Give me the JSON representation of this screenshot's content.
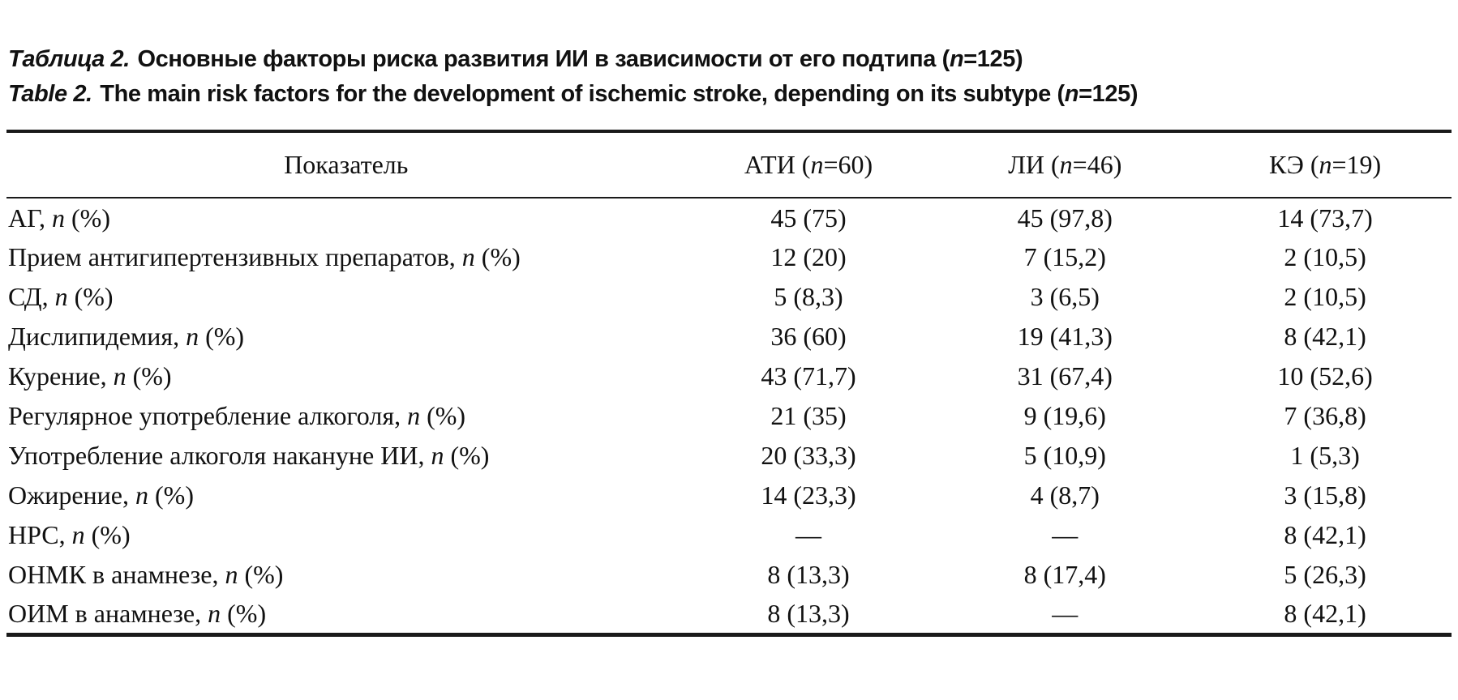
{
  "caption": {
    "ru": {
      "label": "Таблица 2.",
      "body": "Основные факторы риска развития ИИ в зависимости от его подтипа (",
      "n": "n",
      "tail": "=125)"
    },
    "en": {
      "label": "Table 2.",
      "body": "The main risk factors for the development of ischemic stroke, depending on its subtype (",
      "n": "n",
      "tail": "=125)"
    }
  },
  "table": {
    "n_symbol": "n",
    "label_suffix": " (%)",
    "columns": {
      "indicator": "Показатель",
      "groups": [
        {
          "prefix": "АТИ (",
          "tail": "=60)"
        },
        {
          "prefix": "ЛИ (",
          "tail": "=46)"
        },
        {
          "prefix": "КЭ (",
          "tail": "=19)"
        }
      ]
    },
    "rows": [
      {
        "prefix": "АГ, ",
        "values": [
          "45 (75)",
          "45 (97,8)",
          "14 (73,7)"
        ]
      },
      {
        "prefix": "Прием антигипертензивных препаратов, ",
        "values": [
          "12 (20)",
          "7 (15,2)",
          "2 (10,5)"
        ]
      },
      {
        "prefix": "СД, ",
        "values": [
          "5 (8,3)",
          "3 (6,5)",
          "2 (10,5)"
        ]
      },
      {
        "prefix": "Дислипидемия, ",
        "values": [
          "36 (60)",
          "19 (41,3)",
          "8 (42,1)"
        ]
      },
      {
        "prefix": "Курение, ",
        "values": [
          "43 (71,7)",
          "31 (67,4)",
          "10 (52,6)"
        ]
      },
      {
        "prefix": "Регулярное употребление алкоголя, ",
        "values": [
          "21 (35)",
          "9 (19,6)",
          "7 (36,8)"
        ]
      },
      {
        "prefix": "Употребление алкоголя накануне ИИ, ",
        "values": [
          "20 (33,3)",
          "5 (10,9)",
          "1 (5,3)"
        ]
      },
      {
        "prefix": "Ожирение, ",
        "values": [
          "14 (23,3)",
          "4 (8,7)",
          "3 (15,8)"
        ]
      },
      {
        "prefix": "НРС, ",
        "values": [
          "—",
          "—",
          "8 (42,1)"
        ]
      },
      {
        "prefix": "ОНМК в анамнезе, ",
        "values": [
          "8 (13,3)",
          "8 (17,4)",
          "5 (26,3)"
        ]
      },
      {
        "prefix": "ОИМ в анамнезе, ",
        "values": [
          "8 (13,3)",
          "—",
          "8 (42,1)"
        ]
      }
    ]
  }
}
